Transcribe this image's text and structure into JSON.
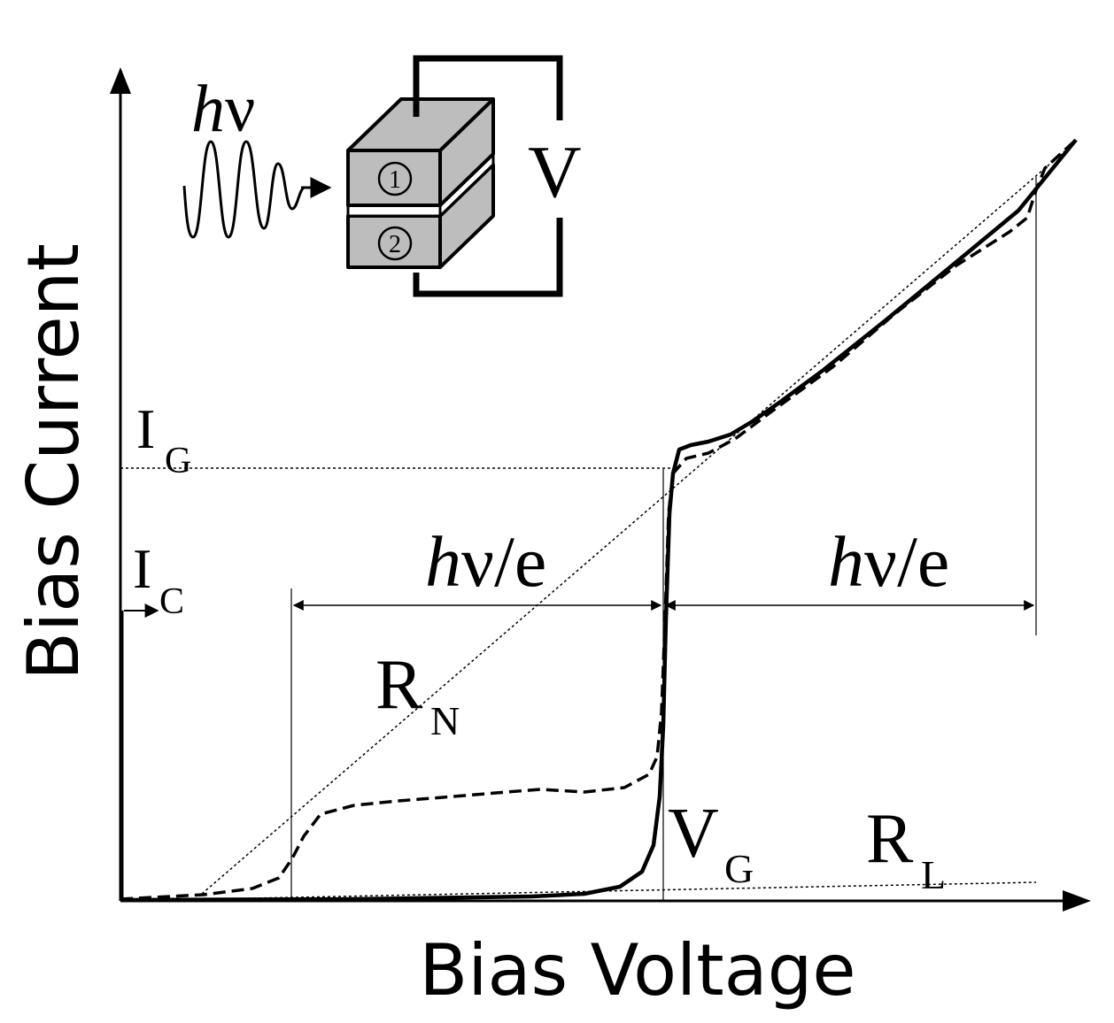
{
  "axes": {
    "y_label": "Bias Current",
    "x_label": "Bias Voltage"
  },
  "labels": {
    "i_g": "I",
    "i_g_sub": "G",
    "i_c": "I",
    "i_c_sub": "C",
    "r_n": "R",
    "r_n_sub": "N",
    "v_g": "V",
    "v_g_sub": "G",
    "r_l": "R",
    "r_l_sub": "L",
    "hv_left_h": "h",
    "hv_left_rest": "ν/e",
    "hv_right_h": "h",
    "hv_right_rest": "ν/e"
  },
  "inset": {
    "photon_h": "h",
    "photon_nu": "ν",
    "voltage": "V",
    "electrode_1": "1",
    "electrode_2": "2"
  },
  "colors": {
    "stroke": "#000000",
    "device_fill": "#bdbdbd",
    "background": "#ffffff"
  }
}
